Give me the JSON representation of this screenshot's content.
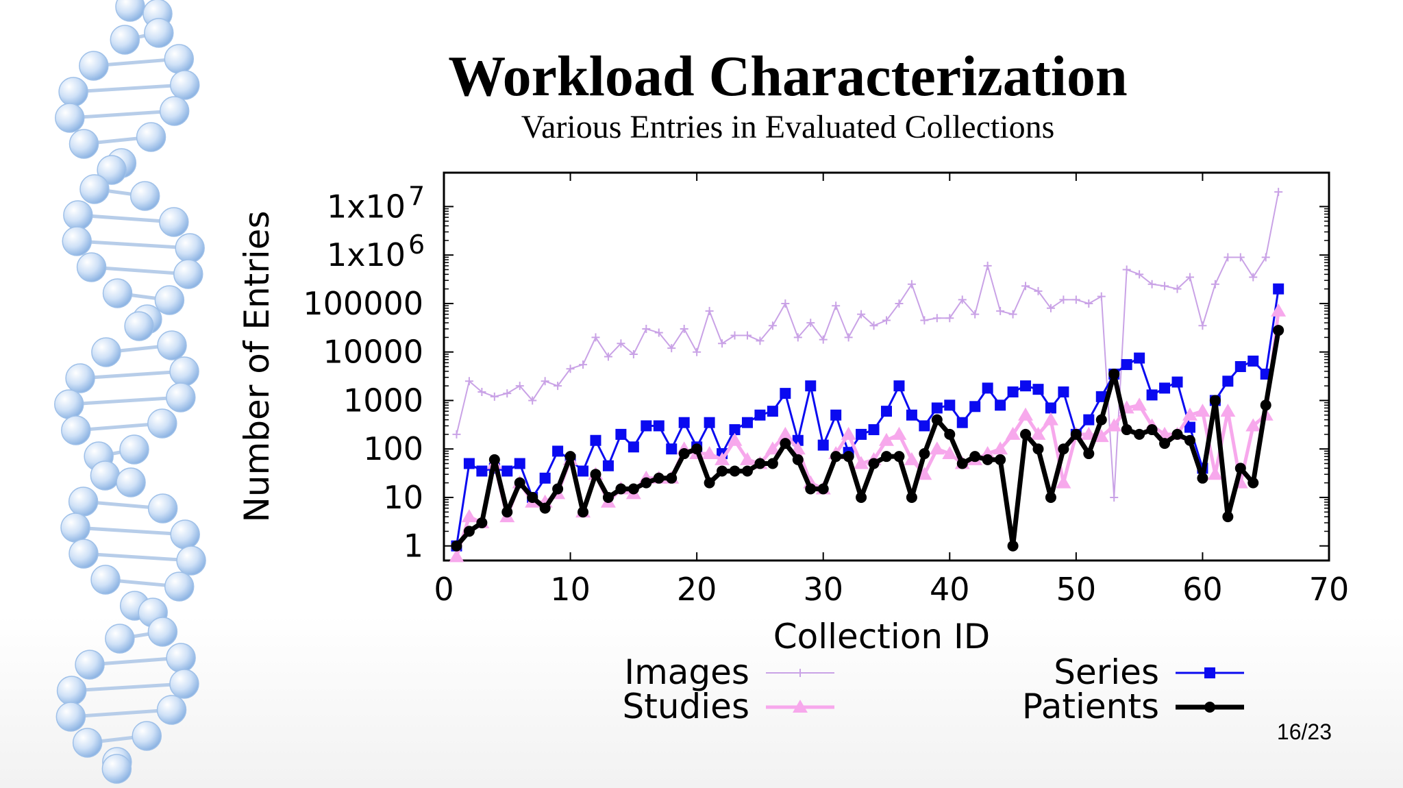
{
  "slide": {
    "title": "Workload Characterization",
    "subtitle": "Various Entries in Evaluated Collections",
    "page_number": "16/23"
  },
  "chart_data": {
    "type": "line",
    "xlabel": "Collection ID",
    "ylabel": "Number of Entries",
    "xlim": [
      0,
      70
    ],
    "ylim": [
      0.5,
      50000000
    ],
    "y_scale": "log",
    "grid": false,
    "legend_position": "bottom",
    "x_ticks": [
      "0",
      "10",
      "20",
      "30",
      "40",
      "50",
      "60",
      "70"
    ],
    "y_ticks": [
      {
        "value": 1,
        "label": "1"
      },
      {
        "value": 10,
        "label": "10"
      },
      {
        "value": 100,
        "label": "100"
      },
      {
        "value": 1000,
        "label": "1000"
      },
      {
        "value": 10000,
        "label": "10000"
      },
      {
        "value": 100000,
        "label": "100000"
      },
      {
        "value": 1000000,
        "label": "1x10",
        "exp": "6"
      },
      {
        "value": 10000000,
        "label": "1x10",
        "exp": "7"
      }
    ],
    "x": [
      1,
      2,
      3,
      4,
      5,
      6,
      7,
      8,
      9,
      10,
      11,
      12,
      13,
      14,
      15,
      16,
      17,
      18,
      19,
      20,
      21,
      22,
      23,
      24,
      25,
      26,
      27,
      28,
      29,
      30,
      31,
      32,
      33,
      34,
      35,
      36,
      37,
      38,
      39,
      40,
      41,
      42,
      43,
      44,
      45,
      46,
      47,
      48,
      49,
      50,
      51,
      52,
      53,
      54,
      55,
      56,
      57,
      58,
      59,
      60,
      61,
      62,
      63,
      64,
      65,
      66
    ],
    "series": [
      {
        "name": "Images",
        "color": "#c9a2e6",
        "marker": "plus",
        "width": 2,
        "values": [
          200,
          2500,
          1500,
          1200,
          1400,
          2000,
          1000,
          2500,
          2000,
          4500,
          5500,
          20000,
          8000,
          15000,
          9000,
          30000,
          25000,
          12000,
          30000,
          10000,
          70000,
          15000,
          22000,
          22000,
          17000,
          35000,
          100000,
          20000,
          40000,
          18000,
          90000,
          20000,
          60000,
          35000,
          45000,
          100000,
          250000,
          45000,
          50000,
          50000,
          120000,
          60000,
          600000,
          70000,
          60000,
          230000,
          180000,
          80000,
          120000,
          120000,
          100000,
          140000,
          10,
          500000,
          400000,
          250000,
          230000,
          200000,
          350000,
          35000,
          250000,
          900000,
          900000,
          350000,
          900000,
          20000000
        ]
      },
      {
        "name": "Series",
        "color": "#0a0af0",
        "marker": "square",
        "width": 3,
        "values": [
          1,
          50,
          35,
          40,
          35,
          50,
          10,
          25,
          90,
          60,
          35,
          150,
          45,
          200,
          110,
          300,
          300,
          100,
          350,
          110,
          350,
          80,
          250,
          350,
          500,
          600,
          1400,
          150,
          2000,
          120,
          500,
          85,
          200,
          250,
          600,
          2000,
          500,
          300,
          700,
          800,
          350,
          750,
          1800,
          800,
          1500,
          2000,
          1700,
          700,
          1500,
          200,
          400,
          1200,
          3500,
          5500,
          7500,
          1300,
          1800,
          2400,
          280,
          40,
          1000,
          2500,
          5000,
          6500,
          3500,
          200000
        ]
      },
      {
        "name": "Studies",
        "color": "#f7a8ec",
        "marker": "triangle",
        "width": 5,
        "values": [
          0.6,
          4,
          3,
          50,
          4,
          20,
          8,
          8,
          12,
          60,
          5,
          30,
          8,
          15,
          12,
          25,
          25,
          25,
          100,
          80,
          80,
          60,
          150,
          60,
          50,
          100,
          200,
          100,
          20,
          15,
          80,
          200,
          50,
          60,
          150,
          200,
          60,
          30,
          100,
          80,
          50,
          60,
          80,
          100,
          200,
          500,
          200,
          400,
          20,
          200,
          200,
          180,
          300,
          700,
          800,
          300,
          200,
          200,
          500,
          600,
          30,
          600,
          20,
          300,
          500,
          70000
        ]
      },
      {
        "name": "Patients",
        "color": "#000000",
        "marker": "circle",
        "width": 7,
        "values": [
          1,
          2,
          3,
          60,
          5,
          20,
          10,
          6,
          15,
          70,
          5,
          30,
          10,
          15,
          15,
          20,
          25,
          25,
          80,
          100,
          20,
          35,
          35,
          35,
          50,
          50,
          130,
          60,
          15,
          15,
          70,
          70,
          10,
          50,
          70,
          70,
          10,
          80,
          400,
          200,
          50,
          70,
          60,
          60,
          1,
          200,
          100,
          10,
          100,
          200,
          80,
          400,
          3500,
          250,
          200,
          250,
          130,
          200,
          150,
          25,
          1000,
          4,
          40,
          20,
          800,
          28000
        ]
      }
    ]
  }
}
